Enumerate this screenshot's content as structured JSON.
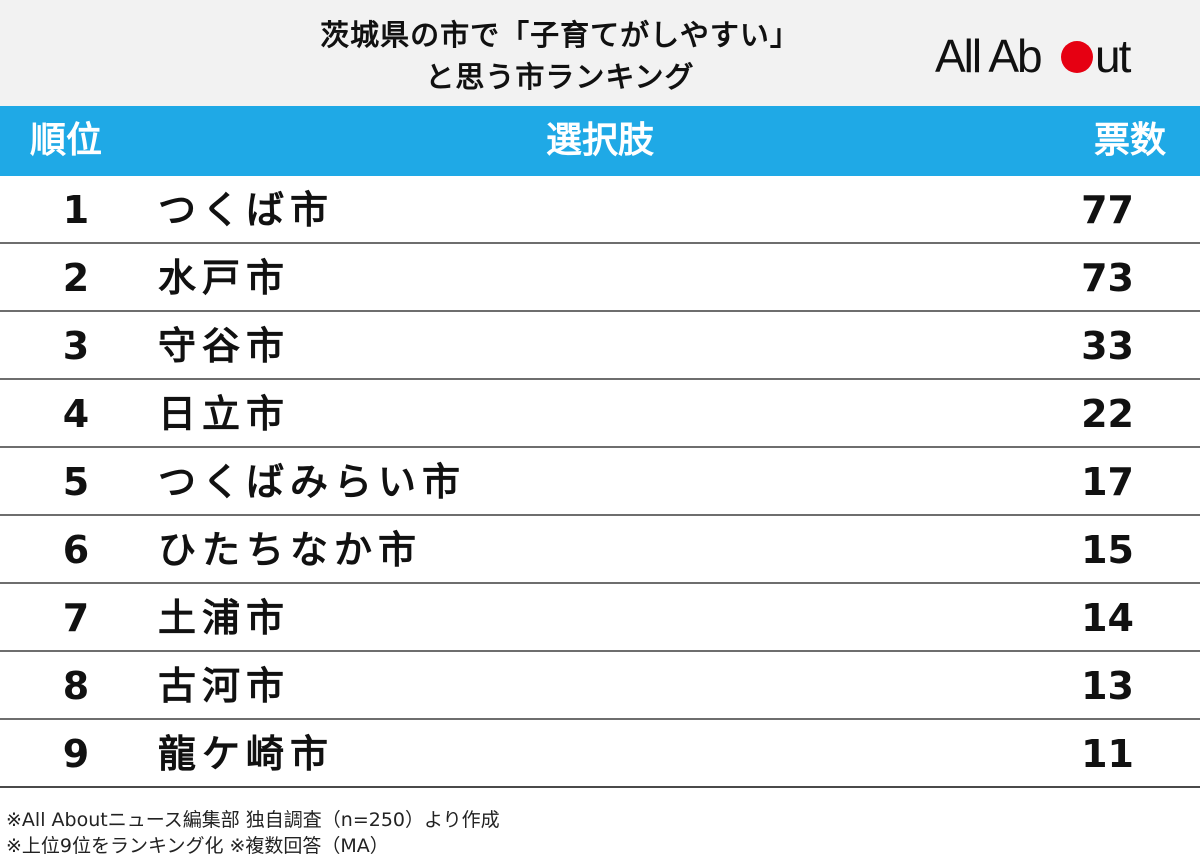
{
  "header": {
    "title_line1": "茨城県の市で「子育てがしやすい」",
    "title_line2": "と思う市ランキング",
    "logo_text": "All About",
    "logo_dot_color": "#e60012"
  },
  "table": {
    "headers": {
      "rank": "順位",
      "choice": "選択肢",
      "votes": "票数"
    },
    "header_color": "#1fa9e6"
  },
  "chart_data": {
    "type": "table",
    "columns": [
      "順位",
      "選択肢",
      "票数"
    ],
    "rows": [
      {
        "rank": "1",
        "choice": "つくば市",
        "votes": "77"
      },
      {
        "rank": "2",
        "choice": "水戸市",
        "votes": "73"
      },
      {
        "rank": "3",
        "choice": "守谷市",
        "votes": "33"
      },
      {
        "rank": "4",
        "choice": "日立市",
        "votes": "22"
      },
      {
        "rank": "5",
        "choice": "つくばみらい市",
        "votes": "17"
      },
      {
        "rank": "6",
        "choice": "ひたちなか市",
        "votes": "15"
      },
      {
        "rank": "7",
        "choice": "土浦市",
        "votes": "14"
      },
      {
        "rank": "8",
        "choice": "古河市",
        "votes": "13"
      },
      {
        "rank": "9",
        "choice": "龍ケ崎市",
        "votes": "11"
      }
    ]
  },
  "footnotes": {
    "line1": "※All Aboutニュース編集部 独自調査（n=250）より作成",
    "line2": "※上位9位をランキング化 ※複数回答（MA）"
  }
}
